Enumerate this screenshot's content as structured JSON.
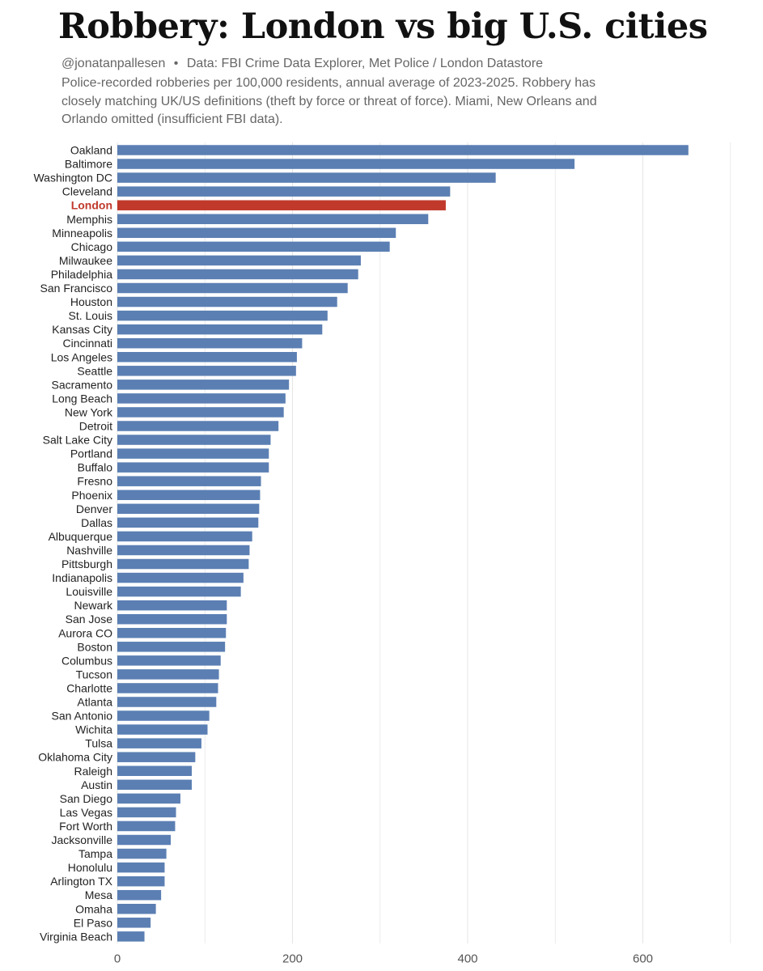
{
  "title": "Robbery: London vs big U.S. cities",
  "credit": {
    "handle": "@jonatanpallesen",
    "separator": "•",
    "source": "Data: FBI Crime Data Explorer, Met Police / London Datastore"
  },
  "subtitle": "Police-recorded robberies per 100,000 residents, annual average of 2023-2025. Robbery has closely matching UK/US definitions (theft by force or threat of force). Miami, New Orleans and Orlando omitted (insufficient FBI data).",
  "colors": {
    "bar": "#5b7fb3",
    "highlight": "#c0392b",
    "grid": "#e6e6e6"
  },
  "chart_data": {
    "type": "bar",
    "orientation": "horizontal",
    "title": "Robbery: London vs big U.S. cities",
    "xlabel": "",
    "ylabel": "",
    "xlim": [
      0,
      700
    ],
    "xticks": [
      0,
      200,
      400,
      600
    ],
    "grid": true,
    "highlight": "London",
    "categories": [
      "Oakland",
      "Baltimore",
      "Washington DC",
      "Cleveland",
      "London",
      "Memphis",
      "Minneapolis",
      "Chicago",
      "Milwaukee",
      "Philadelphia",
      "San Francisco",
      "Houston",
      "St. Louis",
      "Kansas City",
      "Cincinnati",
      "Los Angeles",
      "Seattle",
      "Sacramento",
      "Long Beach",
      "New York",
      "Detroit",
      "Salt Lake City",
      "Portland",
      "Buffalo",
      "Fresno",
      "Phoenix",
      "Denver",
      "Dallas",
      "Albuquerque",
      "Nashville",
      "Pittsburgh",
      "Indianapolis",
      "Louisville",
      "Newark",
      "San Jose",
      "Aurora CO",
      "Boston",
      "Columbus",
      "Tucson",
      "Charlotte",
      "Atlanta",
      "San Antonio",
      "Wichita",
      "Tulsa",
      "Oklahoma City",
      "Raleigh",
      "Austin",
      "San Diego",
      "Las Vegas",
      "Fort Worth",
      "Jacksonville",
      "Tampa",
      "Honolulu",
      "Arlington TX",
      "Mesa",
      "Omaha",
      "El Paso",
      "Virginia Beach"
    ],
    "values": [
      652,
      522,
      432,
      380,
      375,
      355,
      318,
      311,
      278,
      275,
      263,
      251,
      240,
      234,
      211,
      205,
      204,
      196,
      192,
      190,
      184,
      175,
      173,
      173,
      164,
      163,
      162,
      161,
      154,
      151,
      150,
      144,
      141,
      125,
      125,
      124,
      123,
      118,
      116,
      115,
      113,
      105,
      103,
      96,
      89,
      85,
      85,
      72,
      67,
      66,
      61,
      56,
      54,
      54,
      50,
      44,
      38,
      31
    ]
  }
}
